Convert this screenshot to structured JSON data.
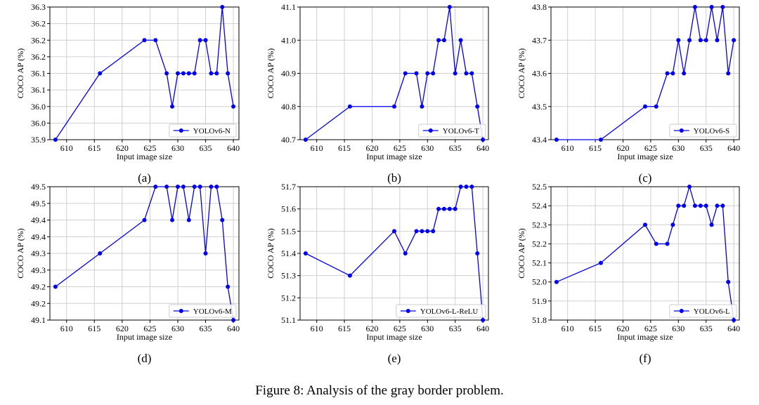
{
  "figure": {
    "caption": "Figure 8: Analysis of the gray border problem."
  },
  "colors": {
    "line": "#0000ee",
    "grid": "#d0d0d0",
    "axis": "#000000"
  },
  "chart_data": [
    {
      "type": "line",
      "panel": "(a)",
      "xlabel": "Input image size",
      "ylabel": "COCO AP (%)",
      "legend_placement": "bottom-right",
      "grid": true,
      "xlim": [
        607,
        641
      ],
      "ylim": [
        35.9,
        36.3
      ],
      "xticks": [
        610,
        615,
        620,
        625,
        630,
        635,
        640
      ],
      "yticks": [
        35.9,
        35.95,
        36.0,
        36.05,
        36.1,
        36.15,
        36.2,
        36.25,
        36.3
      ],
      "ytick_labels": [
        "35.9",
        "36.0",
        "36.0",
        "36.1",
        "36.1",
        "36.2",
        "36.2",
        "36.2",
        "36.3"
      ],
      "series": [
        {
          "name": "YOLOv6-N",
          "x": [
            608,
            616,
            624,
            626,
            628,
            629,
            630,
            631,
            632,
            633,
            634,
            635,
            636,
            637,
            638,
            639,
            640
          ],
          "y": [
            35.9,
            36.1,
            36.2,
            36.2,
            36.1,
            36.0,
            36.1,
            36.1,
            36.1,
            36.1,
            36.2,
            36.2,
            36.1,
            36.1,
            36.3,
            36.1,
            36.0
          ]
        }
      ]
    },
    {
      "type": "line",
      "panel": "(b)",
      "xlabel": "Input image size",
      "ylabel": "COCO AP (%)",
      "legend_placement": "bottom-right",
      "grid": true,
      "xlim": [
        607,
        641
      ],
      "ylim": [
        40.7,
        41.1
      ],
      "xticks": [
        610,
        615,
        620,
        625,
        630,
        635,
        640
      ],
      "yticks": [
        40.7,
        40.8,
        40.9,
        41.0,
        41.1
      ],
      "ytick_labels": [
        "40.7",
        "40.8",
        "40.9",
        "41.0",
        "41.1"
      ],
      "series": [
        {
          "name": "YOLOv6-T",
          "x": [
            608,
            616,
            624,
            626,
            628,
            629,
            630,
            631,
            632,
            633,
            634,
            635,
            636,
            637,
            638,
            639,
            640
          ],
          "y": [
            40.7,
            40.8,
            40.8,
            40.9,
            40.9,
            40.8,
            40.9,
            40.9,
            41.0,
            41.0,
            41.1,
            40.9,
            41.0,
            40.9,
            40.9,
            40.8,
            40.7
          ]
        }
      ]
    },
    {
      "type": "line",
      "panel": "(c)",
      "xlabel": "Input image size",
      "ylabel": "COCO AP (%)",
      "legend_placement": "bottom-right",
      "grid": true,
      "xlim": [
        607,
        641
      ],
      "ylim": [
        43.4,
        43.8
      ],
      "xticks": [
        610,
        615,
        620,
        625,
        630,
        635,
        640
      ],
      "yticks": [
        43.4,
        43.5,
        43.6,
        43.7,
        43.8
      ],
      "ytick_labels": [
        "43.4",
        "43.5",
        "43.6",
        "43.7",
        "43.8"
      ],
      "series": [
        {
          "name": "YOLOv6-S",
          "x": [
            608,
            616,
            624,
            626,
            628,
            629,
            630,
            631,
            632,
            633,
            634,
            635,
            636,
            637,
            638,
            639,
            640
          ],
          "y": [
            43.4,
            43.4,
            43.5,
            43.5,
            43.6,
            43.6,
            43.7,
            43.6,
            43.7,
            43.8,
            43.7,
            43.7,
            43.8,
            43.7,
            43.8,
            43.6,
            43.7
          ]
        }
      ]
    },
    {
      "type": "line",
      "panel": "(d)",
      "xlabel": "Input image size",
      "ylabel": "COCO AP (%)",
      "legend_placement": "bottom-right",
      "grid": true,
      "xlim": [
        607,
        641
      ],
      "ylim": [
        49.1,
        49.5
      ],
      "xticks": [
        610,
        615,
        620,
        625,
        630,
        635,
        640
      ],
      "yticks": [
        49.1,
        49.15,
        49.2,
        49.25,
        49.3,
        49.35,
        49.4,
        49.45,
        49.5
      ],
      "ytick_labels": [
        "49.1",
        "49.2",
        "49.2",
        "49.3",
        "49.3",
        "49.4",
        "49.4",
        "49.5",
        "49.5"
      ],
      "series": [
        {
          "name": "YOLOv6-M",
          "x": [
            608,
            616,
            624,
            626,
            628,
            629,
            630,
            631,
            632,
            633,
            634,
            635,
            636,
            637,
            638,
            639,
            640
          ],
          "y": [
            49.2,
            49.3,
            49.4,
            49.5,
            49.5,
            49.4,
            49.5,
            49.5,
            49.4,
            49.5,
            49.5,
            49.3,
            49.5,
            49.5,
            49.4,
            49.2,
            49.1
          ]
        }
      ]
    },
    {
      "type": "line",
      "panel": "(e)",
      "xlabel": "Input image size",
      "ylabel": "COCO AP (%)",
      "legend_placement": "bottom-right",
      "grid": true,
      "xlim": [
        607,
        641
      ],
      "ylim": [
        51.1,
        51.7
      ],
      "xticks": [
        610,
        615,
        620,
        625,
        630,
        635,
        640
      ],
      "yticks": [
        51.1,
        51.2,
        51.3,
        51.4,
        51.5,
        51.6,
        51.7
      ],
      "ytick_labels": [
        "51.1",
        "51.2",
        "51.3",
        "51.4",
        "51.5",
        "51.6",
        "51.7"
      ],
      "series": [
        {
          "name": "YOLOv6-L-ReLU",
          "x": [
            608,
            616,
            624,
            626,
            628,
            629,
            630,
            631,
            632,
            633,
            634,
            635,
            636,
            637,
            638,
            639,
            640
          ],
          "y": [
            51.4,
            51.3,
            51.5,
            51.4,
            51.5,
            51.5,
            51.5,
            51.5,
            51.6,
            51.6,
            51.6,
            51.6,
            51.7,
            51.7,
            51.7,
            51.4,
            51.1
          ]
        }
      ]
    },
    {
      "type": "line",
      "panel": "(f)",
      "xlabel": "Input image size",
      "ylabel": "COCO AP (%)",
      "legend_placement": "bottom-right",
      "grid": true,
      "xlim": [
        607,
        641
      ],
      "ylim": [
        51.8,
        52.5
      ],
      "xticks": [
        610,
        615,
        620,
        625,
        630,
        635,
        640
      ],
      "yticks": [
        51.8,
        51.9,
        52.0,
        52.1,
        52.2,
        52.3,
        52.4,
        52.5
      ],
      "ytick_labels": [
        "51.8",
        "51.9",
        "52.0",
        "52.1",
        "52.2",
        "52.3",
        "52.4",
        "52.5"
      ],
      "series": [
        {
          "name": "YOLOv6-L",
          "x": [
            608,
            616,
            624,
            626,
            628,
            629,
            630,
            631,
            632,
            633,
            634,
            635,
            636,
            637,
            638,
            639,
            640
          ],
          "y": [
            52.0,
            52.1,
            52.3,
            52.2,
            52.2,
            52.3,
            52.4,
            52.4,
            52.5,
            52.4,
            52.4,
            52.4,
            52.3,
            52.4,
            52.4,
            52.0,
            51.8
          ]
        }
      ]
    }
  ]
}
